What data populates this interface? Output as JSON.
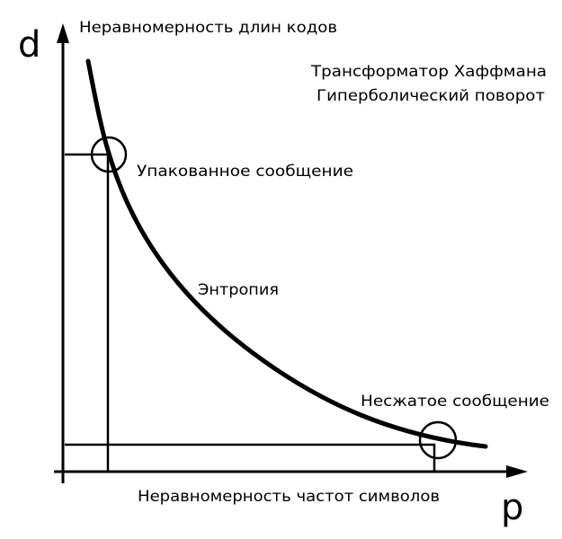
{
  "axes": {
    "y_symbol": "d",
    "y_label": "Неравномерность длин кодов",
    "x_symbol": "p",
    "x_label": "Неравномерность частот символов"
  },
  "titles": [
    "Трансформатор Хаффмана",
    "Гиперболический поворот"
  ],
  "annotations": {
    "packed": "Упакованное сообщение",
    "entropy": "Энтропия",
    "uncompressed": "Несжатое сообщение"
  }
}
